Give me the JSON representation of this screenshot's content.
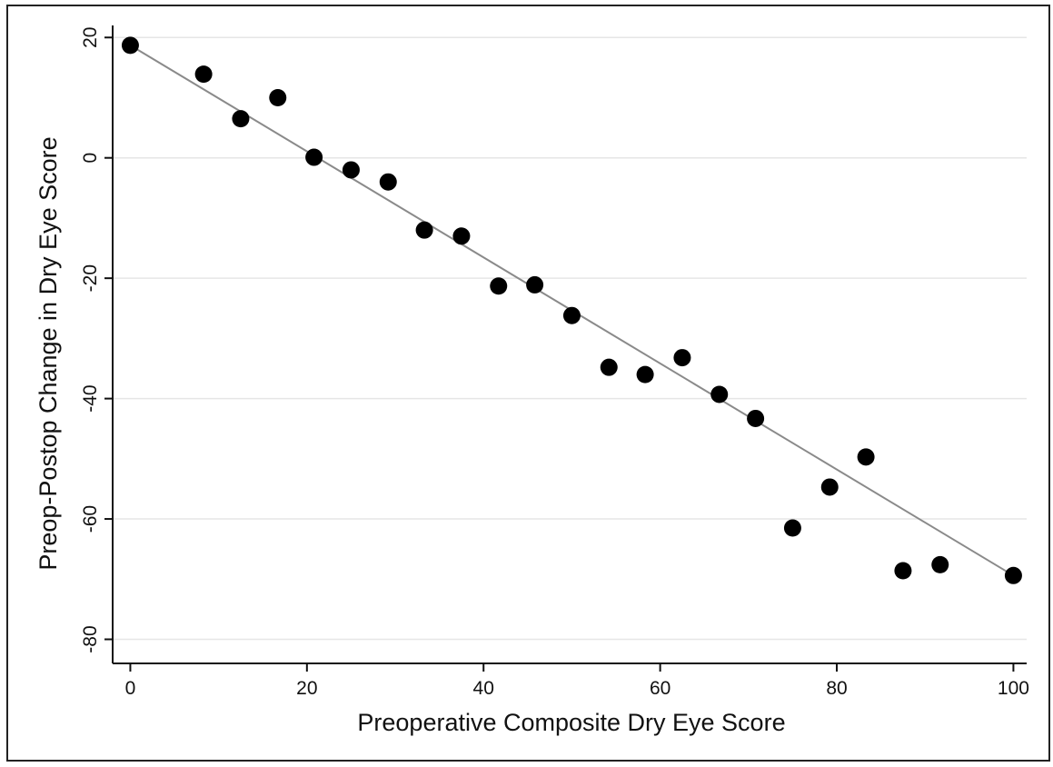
{
  "chart_data": {
    "type": "scatter",
    "xlabel": "Preoperative Composite Dry Eye Score",
    "ylabel": "Preop-Postop Change in Dry Eye Score",
    "xlim": [
      -2,
      101.5
    ],
    "ylim": [
      -84,
      22
    ],
    "xticks": [
      0,
      20,
      40,
      60,
      80,
      100
    ],
    "yticks": [
      20,
      0,
      -20,
      -40,
      -60,
      -80
    ],
    "grid": "horizontal",
    "series": [
      {
        "points": [
          [
            0,
            18.7
          ],
          [
            8.3,
            13.9
          ],
          [
            12.5,
            6.5
          ],
          [
            16.7,
            10.0
          ],
          [
            20.8,
            0.1
          ],
          [
            25.0,
            -2.0
          ],
          [
            29.2,
            -4.0
          ],
          [
            33.3,
            -12.0
          ],
          [
            37.5,
            -13.0
          ],
          [
            41.7,
            -21.3
          ],
          [
            45.8,
            -21.1
          ],
          [
            50.0,
            -26.2
          ],
          [
            54.2,
            -34.8
          ],
          [
            58.3,
            -36.0
          ],
          [
            62.5,
            -33.2
          ],
          [
            66.7,
            -39.3
          ],
          [
            70.8,
            -43.3
          ],
          [
            75.0,
            -61.5
          ],
          [
            79.2,
            -54.7
          ],
          [
            83.3,
            -49.7
          ],
          [
            87.5,
            -68.6
          ],
          [
            91.7,
            -67.6
          ],
          [
            100.0,
            -69.4
          ]
        ],
        "color": "#000000"
      }
    ],
    "fit_line": {
      "from": [
        0,
        18.7
      ],
      "to": [
        100,
        -69.4
      ],
      "color": "#8a8a8a"
    }
  }
}
